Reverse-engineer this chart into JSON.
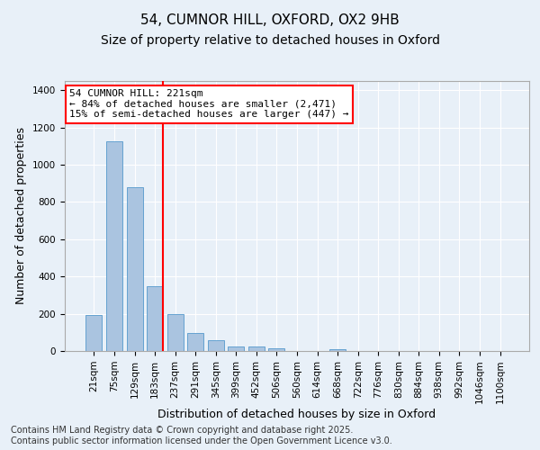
{
  "title_line1": "54, CUMNOR HILL, OXFORD, OX2 9HB",
  "title_line2": "Size of property relative to detached houses in Oxford",
  "xlabel": "Distribution of detached houses by size in Oxford",
  "ylabel": "Number of detached properties",
  "categories": [
    "21sqm",
    "75sqm",
    "129sqm",
    "183sqm",
    "237sqm",
    "291sqm",
    "345sqm",
    "399sqm",
    "452sqm",
    "506sqm",
    "560sqm",
    "614sqm",
    "668sqm",
    "722sqm",
    "776sqm",
    "830sqm",
    "884sqm",
    "938sqm",
    "992sqm",
    "1046sqm",
    "1100sqm"
  ],
  "values": [
    195,
    1125,
    880,
    350,
    198,
    96,
    58,
    25,
    22,
    16,
    0,
    0,
    12,
    0,
    0,
    0,
    0,
    0,
    0,
    0,
    0
  ],
  "bar_color": "#aac4e0",
  "bar_edge_color": "#5599cc",
  "vline_color": "red",
  "vline_x_index": 3,
  "annotation_text": "54 CUMNOR HILL: 221sqm\n← 84% of detached houses are smaller (2,471)\n15% of semi-detached houses are larger (447) →",
  "annotation_box_color": "white",
  "annotation_box_edge_color": "red",
  "ylim": [
    0,
    1450
  ],
  "yticks": [
    0,
    200,
    400,
    600,
    800,
    1000,
    1200,
    1400
  ],
  "background_color": "#e8f0f8",
  "grid_color": "white",
  "footer_line1": "Contains HM Land Registry data © Crown copyright and database right 2025.",
  "footer_line2": "Contains public sector information licensed under the Open Government Licence v3.0.",
  "title_fontsize": 11,
  "subtitle_fontsize": 10,
  "tick_fontsize": 7.5,
  "ylabel_fontsize": 9,
  "xlabel_fontsize": 9,
  "annotation_fontsize": 8,
  "footer_fontsize": 7
}
